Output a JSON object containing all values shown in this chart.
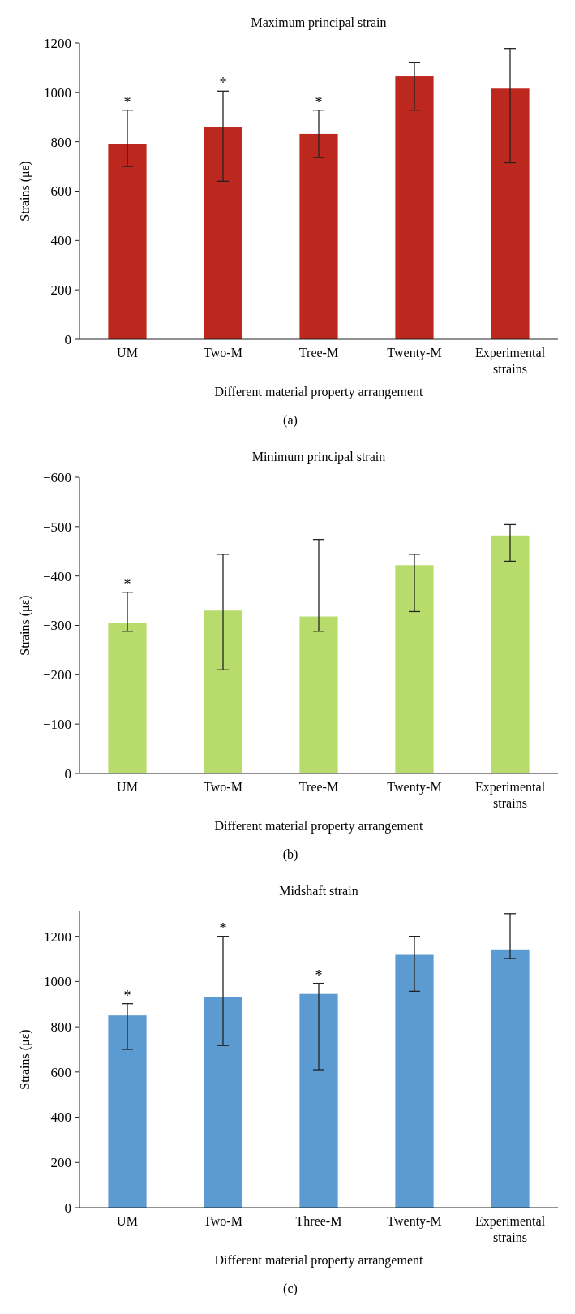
{
  "chart_data": [
    {
      "type": "bar",
      "title": "Maximum principal strain",
      "xlabel": "Different material property arrangement",
      "ylabel": "Strains (με)",
      "categories": [
        "UM",
        "Two-M",
        "Tree-M",
        "Twenty-M",
        "Experimental strains"
      ],
      "values": [
        790,
        858,
        832,
        1065,
        1015
      ],
      "errors": [
        [
          700,
          928
        ],
        [
          640,
          1005
        ],
        [
          736,
          928
        ],
        [
          928,
          1120
        ],
        [
          715,
          1178
        ]
      ],
      "color": "#bc271e",
      "ylim": [
        0,
        1200
      ],
      "yticks": [
        0,
        200,
        400,
        600,
        800,
        1000,
        1200
      ],
      "annotations": [
        {
          "text": "*",
          "x": "UM",
          "y": 928
        },
        {
          "text": "*",
          "x": "Two-M",
          "y": 1005
        },
        {
          "text": "*",
          "x": "Tree-M",
          "y": 928
        },
        "(a)"
      ]
    },
    {
      "type": "bar",
      "title": "Minimum principal strain",
      "xlabel": "Different material property arrangement",
      "ylabel": "Strains (με)",
      "categories": [
        "UM",
        "Two-M",
        "Tree-M",
        "Twenty-M",
        "Experimental strains"
      ],
      "values": [
        -305,
        -330,
        -318,
        -422,
        -482
      ],
      "errors": [
        [
          -367,
          -288
        ],
        [
          -444,
          -210
        ],
        [
          -474,
          -288
        ],
        [
          -444,
          -328
        ],
        [
          -504,
          -430
        ]
      ],
      "color": "#b8dc6b",
      "ylim": [
        0,
        -600
      ],
      "yticks": [
        0,
        -100,
        -200,
        -300,
        -400,
        -500,
        -600
      ],
      "annotations": [
        {
          "text": "*",
          "x": "UM",
          "y": -367
        },
        "(b)"
      ]
    },
    {
      "type": "bar",
      "title": "Midshaft strain",
      "xlabel": "Different material property arrangement",
      "ylabel": "Strains (με)",
      "categories": [
        "UM",
        "Two-M",
        "Three-M",
        "Twenty-M",
        "Experimental strains"
      ],
      "values": [
        850,
        932,
        945,
        1118,
        1142
      ],
      "errors": [
        [
          700,
          902
        ],
        [
          717,
          1200
        ],
        [
          610,
          992
        ],
        [
          957,
          1200
        ],
        [
          1102,
          1300
        ]
      ],
      "color": "#5b9bd1",
      "ylim": [
        0,
        1310
      ],
      "yticks": [
        0,
        200,
        400,
        600,
        800,
        1000,
        1200
      ],
      "annotations": [
        {
          "text": "*",
          "x": "UM",
          "y": 902
        },
        {
          "text": "*",
          "x": "Two-M",
          "y": 1200
        },
        {
          "text": "*",
          "x": "Three-M",
          "y": 992
        },
        "(c)"
      ]
    }
  ]
}
